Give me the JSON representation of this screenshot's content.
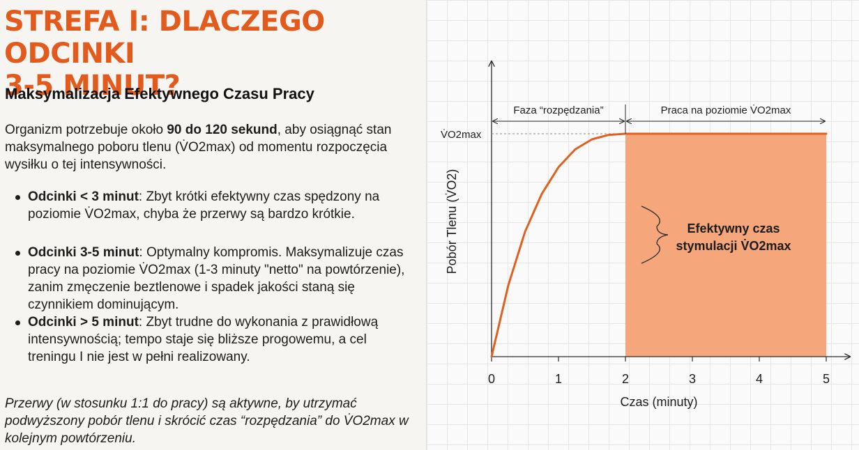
{
  "title": "STREFA I: DLACZEGO ODCINKI\n3-5 MINUT?",
  "subtitle": "Maksymalizacja Efektywnego Czasu Pracy",
  "intro": {
    "before": "Organizm potrzebuje około ",
    "bold": "90 do 120 sekund",
    "after": ", aby osiągnąć stan maksymalnego poboru tlenu (V̇O2max) od momentu rozpoczęcia wysiłku o tej intensywności."
  },
  "bullets": [
    {
      "bold": "Odcinki < 3 minut",
      "text": ": Zbyt krótki efektywny czas spędzony na poziomie V̇O2max, chyba że przerwy są bardzo krótkie."
    },
    {
      "bold": "Odcinki 3-5 minut",
      "text": ": Optymalny kompromis. Maksymalizuje czas pracy na poziomie V̇O2max (1-3 minuty \"netto\" na powtórzenie), zanim zmęczenie beztlenowe i spadek jakości staną się czynnikiem dominującym."
    },
    {
      "bold": "Odcinki > 5 minut",
      "text": ": Zbyt trudne do wykonania z prawidłową intensywnością; tempo staje się bliższe progowemu, a cel treningu I nie jest w pełni realizowany."
    }
  ],
  "note": "Przerwy (w stosunku 1:1 do pracy) są aktywne, by utrzymać podwyższony pobór tlenu i skrócić czas “rozpędzania” do V̇O2max w kolejnym powtórzeniu.",
  "chart_data": {
    "type": "line",
    "title": "",
    "xlabel": "Czas (minuty)",
    "ylabel": "Pobór Tlenu (V̇O2)",
    "x_ticks": [
      0,
      1,
      2,
      3,
      4,
      5
    ],
    "xlim": [
      0,
      5
    ],
    "y_level_label": "V̇O2max",
    "series": [
      {
        "x": [
          0,
          0.25,
          0.5,
          0.75,
          1,
          1.25,
          1.5,
          1.75,
          2,
          3,
          4,
          5
        ],
        "y": [
          0,
          0.32,
          0.56,
          0.73,
          0.85,
          0.93,
          0.975,
          0.995,
          1,
          1,
          1,
          1
        ]
      }
    ],
    "shaded_region": {
      "x": [
        2,
        5
      ],
      "label": "Efektywny czas stymulacji V̇O2max"
    },
    "phase_annotations": [
      {
        "x": [
          0,
          2
        ],
        "label": "Faza “rozpędzania”"
      },
      {
        "x": [
          2,
          5
        ],
        "label": "Praca na poziomie V̇O2max"
      }
    ],
    "colors": {
      "line": "#e0601f",
      "fill": "#f5a67a",
      "axis": "#2b2b2b"
    },
    "grid": true
  }
}
